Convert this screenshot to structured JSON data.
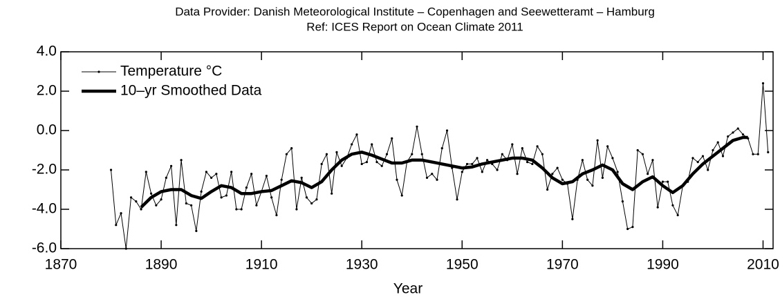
{
  "chart_data": {
    "type": "line",
    "title": "Data Provider: Danish Meteorological Institute – Copenhagen and Seewetteramt – Hamburg",
    "subtitle": "Ref: ICES Report on Ocean Climate 2011",
    "x_label": "Year",
    "x": [
      1880,
      1881,
      1882,
      1883,
      1884,
      1885,
      1886,
      1887,
      1888,
      1889,
      1890,
      1891,
      1892,
      1893,
      1894,
      1895,
      1896,
      1897,
      1898,
      1899,
      1900,
      1901,
      1902,
      1903,
      1904,
      1905,
      1906,
      1907,
      1908,
      1909,
      1910,
      1911,
      1912,
      1913,
      1914,
      1915,
      1916,
      1917,
      1918,
      1919,
      1920,
      1921,
      1922,
      1923,
      1924,
      1925,
      1926,
      1927,
      1928,
      1929,
      1930,
      1931,
      1932,
      1933,
      1934,
      1935,
      1936,
      1937,
      1938,
      1939,
      1940,
      1941,
      1942,
      1943,
      1944,
      1945,
      1946,
      1947,
      1948,
      1949,
      1950,
      1951,
      1952,
      1953,
      1954,
      1955,
      1956,
      1957,
      1958,
      1959,
      1960,
      1961,
      1962,
      1963,
      1964,
      1965,
      1966,
      1967,
      1968,
      1969,
      1970,
      1971,
      1972,
      1973,
      1974,
      1975,
      1976,
      1977,
      1978,
      1979,
      1980,
      1981,
      1982,
      1983,
      1984,
      1985,
      1986,
      1987,
      1988,
      1989,
      1990,
      1991,
      1992,
      1993,
      1994,
      1995,
      1996,
      1997,
      1998,
      1999,
      2000,
      2001,
      2002,
      2003,
      2004,
      2005,
      2006,
      2007,
      2008,
      2009,
      2010,
      2011
    ],
    "series": [
      {
        "name": "Temperature °C",
        "color": "#000000",
        "style": "thin-dots",
        "values": [
          -2.0,
          -4.8,
          -4.2,
          -6.0,
          -3.4,
          -3.6,
          -4.0,
          -2.1,
          -3.2,
          -3.8,
          -3.5,
          -2.4,
          -1.8,
          -4.8,
          -1.5,
          -3.7,
          -3.8,
          -5.1,
          -3.1,
          -2.1,
          -2.4,
          -2.2,
          -3.4,
          -3.3,
          -2.1,
          -4.0,
          -4.0,
          -2.9,
          -2.2,
          -3.8,
          -3.1,
          -2.3,
          -3.4,
          -4.3,
          -2.5,
          -1.2,
          -0.9,
          -4.0,
          -2.4,
          -3.4,
          -3.7,
          -3.5,
          -1.7,
          -1.2,
          -3.2,
          -1.1,
          -1.8,
          -1.4,
          -0.7,
          -0.2,
          -1.7,
          -1.6,
          -0.7,
          -1.6,
          -1.8,
          -1.2,
          -0.4,
          -2.5,
          -3.3,
          -1.6,
          -1.2,
          0.2,
          -1.2,
          -2.4,
          -2.2,
          -2.5,
          -0.9,
          0.0,
          -1.9,
          -3.5,
          -2.1,
          -1.7,
          -1.7,
          -1.4,
          -2.1,
          -1.5,
          -1.7,
          -2.0,
          -1.2,
          -1.5,
          -0.7,
          -2.2,
          -0.9,
          -1.6,
          -1.7,
          -0.8,
          -1.2,
          -3.0,
          -2.2,
          -1.9,
          -2.5,
          -2.7,
          -4.5,
          -2.5,
          -1.5,
          -2.5,
          -2.8,
          -0.5,
          -2.4,
          -0.8,
          -1.4,
          -2.1,
          -3.6,
          -5.0,
          -4.9,
          -1.0,
          -1.2,
          -2.2,
          -1.5,
          -3.9,
          -2.6,
          -2.6,
          -3.8,
          -4.3,
          -2.8,
          -2.6,
          -1.4,
          -1.6,
          -1.3,
          -2.0,
          -1.0,
          -0.6,
          -1.3,
          -0.3,
          -0.1,
          0.1,
          -0.2,
          -0.4,
          -1.2,
          -1.2,
          2.4,
          -1.1
        ]
      },
      {
        "name": "10–yr Smoothed Data",
        "color": "#000000",
        "style": "thick",
        "x": [
          1886,
          1888,
          1890,
          1892,
          1894,
          1896,
          1898,
          1900,
          1902,
          1904,
          1906,
          1908,
          1910,
          1912,
          1914,
          1916,
          1918,
          1920,
          1922,
          1924,
          1926,
          1928,
          1930,
          1932,
          1934,
          1936,
          1938,
          1940,
          1942,
          1944,
          1946,
          1948,
          1950,
          1952,
          1954,
          1956,
          1958,
          1960,
          1962,
          1964,
          1966,
          1968,
          1970,
          1972,
          1974,
          1976,
          1978,
          1980,
          1982,
          1984,
          1986,
          1988,
          1990,
          1992,
          1994,
          1996,
          1998,
          2000,
          2002,
          2004,
          2006,
          2007
        ],
        "values": [
          -3.9,
          -3.4,
          -3.1,
          -3.0,
          -3.0,
          -3.3,
          -3.45,
          -3.1,
          -2.8,
          -2.9,
          -3.2,
          -3.2,
          -3.1,
          -3.05,
          -2.8,
          -2.55,
          -2.65,
          -2.9,
          -2.6,
          -2.0,
          -1.5,
          -1.2,
          -1.1,
          -1.25,
          -1.45,
          -1.65,
          -1.65,
          -1.5,
          -1.5,
          -1.6,
          -1.7,
          -1.8,
          -1.9,
          -1.85,
          -1.7,
          -1.6,
          -1.5,
          -1.4,
          -1.4,
          -1.5,
          -1.9,
          -2.4,
          -2.7,
          -2.6,
          -2.2,
          -2.0,
          -1.75,
          -2.0,
          -2.7,
          -3.0,
          -2.6,
          -2.35,
          -2.8,
          -3.15,
          -2.8,
          -2.2,
          -1.7,
          -1.3,
          -0.9,
          -0.5,
          -0.35,
          -0.35
        ]
      }
    ],
    "xlim": [
      1870,
      2012
    ],
    "xticks": [
      1870,
      1890,
      1910,
      1930,
      1950,
      1970,
      1990,
      2010
    ],
    "ylim": [
      -6,
      4
    ],
    "yticks": [
      {
        "value": -6,
        "label": "-6.0"
      },
      {
        "value": -4,
        "label": "-4.0"
      },
      {
        "value": -2,
        "label": "-2.0"
      },
      {
        "value": 0,
        "label": "0.0"
      },
      {
        "value": 2,
        "label": "2.0"
      },
      {
        "value": 4,
        "label": "4.0"
      }
    ],
    "legend": "upper left"
  }
}
